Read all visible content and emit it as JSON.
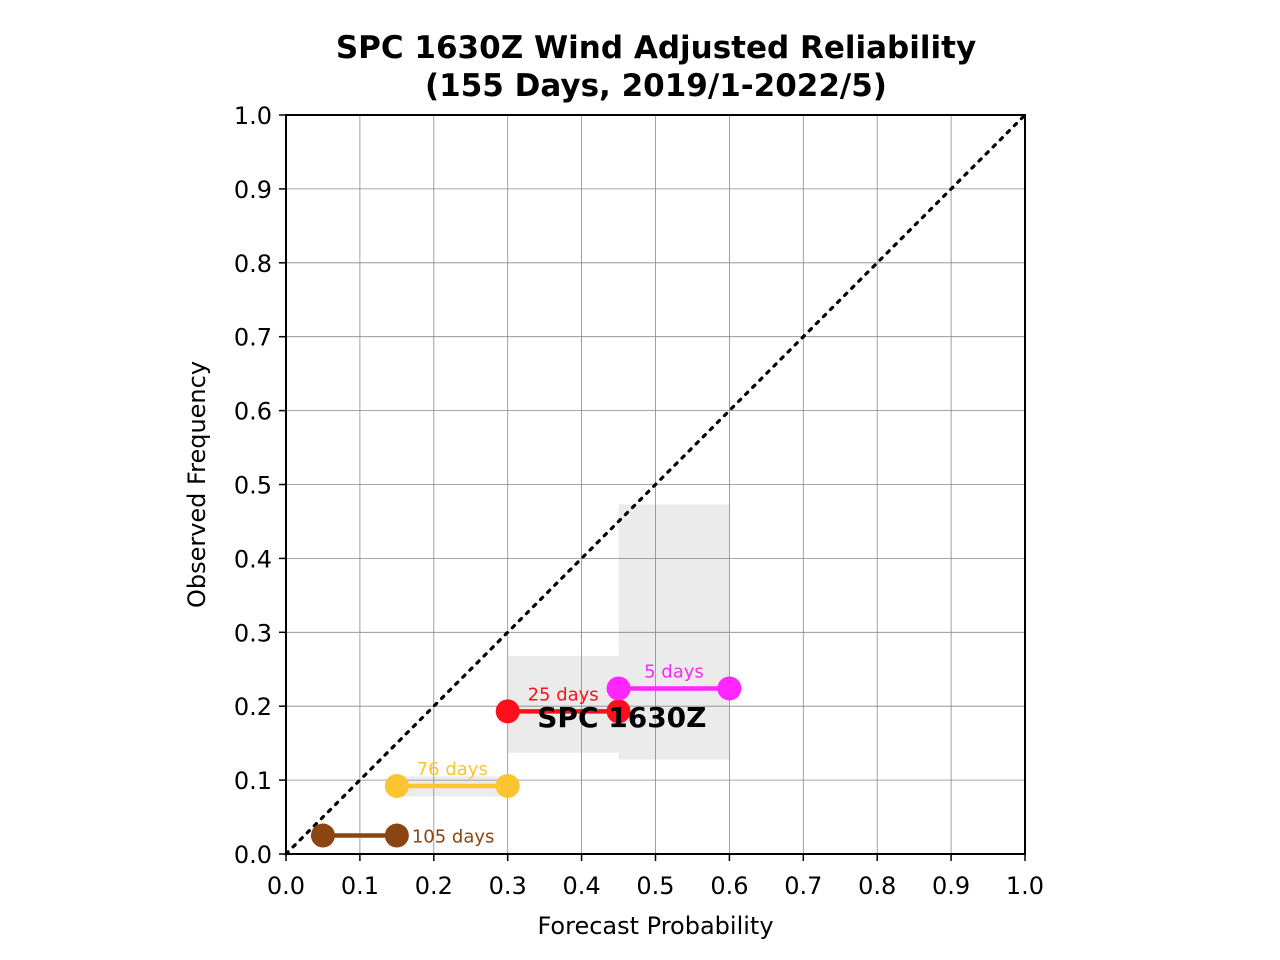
{
  "chart_data": {
    "type": "line",
    "title": "SPC 1630Z Wind Adjusted Reliability",
    "subtitle": "(155 Days, 2019/1-2022/5)",
    "xlabel": "Forecast Probability",
    "ylabel": "Observed Frequency",
    "xlim": [
      0.0,
      1.0
    ],
    "ylim": [
      0.0,
      1.0
    ],
    "x_ticks": [
      "0.0",
      "0.1",
      "0.2",
      "0.3",
      "0.4",
      "0.5",
      "0.6",
      "0.7",
      "0.8",
      "0.9",
      "1.0"
    ],
    "y_ticks": [
      "0.0",
      "0.1",
      "0.2",
      "0.3",
      "0.4",
      "0.5",
      "0.6",
      "0.7",
      "0.8",
      "0.9",
      "1.0"
    ],
    "grid": true,
    "reference_line": {
      "style": "dotted",
      "color": "#000000",
      "from": [
        0,
        0
      ],
      "to": [
        1,
        1
      ]
    },
    "annotation": "SPC 1630Z",
    "series": [
      {
        "x": [
          0.05,
          0.15
        ],
        "y": [
          0.025,
          0.025
        ],
        "count_label": "105 days",
        "color": "#8b4513",
        "range": null
      },
      {
        "x": [
          0.15,
          0.3
        ],
        "y": [
          0.092,
          0.092
        ],
        "count_label": "76 days",
        "color": "#fbc531",
        "range": [
          0.078,
          0.105
        ]
      },
      {
        "x": [
          0.3,
          0.45
        ],
        "y": [
          0.193,
          0.193
        ],
        "count_label": "25 days",
        "color": "#ff0f1c",
        "range": [
          0.137,
          0.268
        ]
      },
      {
        "x": [
          0.45,
          0.6
        ],
        "y": [
          0.224,
          0.224
        ],
        "count_label": "5 days",
        "color": "#ff26ff",
        "range": [
          0.128,
          0.473
        ]
      }
    ]
  }
}
